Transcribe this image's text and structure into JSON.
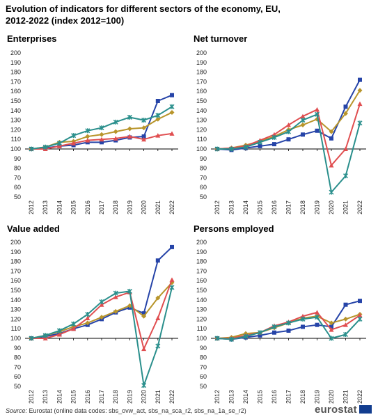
{
  "title_line1": "Evolution of indicators for different sectors of the economy, EU,",
  "title_line2": "2012-2022 (index 2012=100)",
  "source_label": "Source:",
  "source_text": " Eurostat (online data codes: sbs_ovw_act, sbs_na_sca_r2, sbs_na_1a_se_r2)",
  "logo_text": "eurostat",
  "colors": {
    "blue": "#2644a8",
    "gold": "#b8952b",
    "red": "#e04e50",
    "teal": "#2a8f8c"
  },
  "chart_data": [
    {
      "type": "line",
      "title": "Enterprises",
      "x": [
        "2012",
        "2013",
        "2014",
        "2015",
        "2016",
        "2017",
        "2018",
        "2019",
        "2020",
        "2021",
        "2022"
      ],
      "ylim": [
        50,
        200
      ],
      "yticks": [
        50,
        60,
        70,
        80,
        90,
        100,
        110,
        120,
        130,
        140,
        150,
        160,
        170,
        180,
        190,
        200
      ],
      "grid": false,
      "series": [
        {
          "color": "blue",
          "marker": "square",
          "values": [
            100,
            101,
            103,
            104,
            107,
            107,
            109,
            112,
            113,
            150,
            156
          ]
        },
        {
          "color": "gold",
          "marker": "diamond",
          "values": [
            100,
            102,
            107,
            108,
            113,
            115,
            118,
            121,
            122,
            131,
            138
          ]
        },
        {
          "color": "red",
          "marker": "triangle",
          "values": [
            100,
            100,
            103,
            106,
            109,
            110,
            111,
            113,
            110,
            114,
            116
          ]
        },
        {
          "color": "teal",
          "marker": "star",
          "values": [
            100,
            102,
            106,
            114,
            119,
            122,
            128,
            133,
            130,
            135,
            144
          ]
        }
      ]
    },
    {
      "type": "line",
      "title": "Net turnover",
      "x": [
        "2012",
        "2013",
        "2014",
        "2015",
        "2016",
        "2017",
        "2018",
        "2019",
        "2020",
        "2021",
        "2022"
      ],
      "ylim": [
        50,
        200
      ],
      "yticks": [
        50,
        60,
        70,
        80,
        90,
        100,
        110,
        120,
        130,
        140,
        150,
        160,
        170,
        180,
        190,
        200
      ],
      "grid": false,
      "series": [
        {
          "color": "blue",
          "marker": "square",
          "values": [
            100,
            99,
            101,
            103,
            105,
            110,
            115,
            119,
            111,
            144,
            172
          ]
        },
        {
          "color": "gold",
          "marker": "diamond",
          "values": [
            100,
            101,
            104,
            108,
            113,
            120,
            125,
            131,
            118,
            137,
            161
          ]
        },
        {
          "color": "red",
          "marker": "triangle",
          "values": [
            100,
            101,
            103,
            109,
            115,
            125,
            134,
            141,
            83,
            100,
            147
          ]
        },
        {
          "color": "teal",
          "marker": "star",
          "values": [
            100,
            100,
            102,
            107,
            112,
            118,
            130,
            136,
            55,
            72,
            127
          ]
        }
      ]
    },
    {
      "type": "line",
      "title": "Value added",
      "x": [
        "2012",
        "2013",
        "2014",
        "2015",
        "2016",
        "2017",
        "2018",
        "2019",
        "2020",
        "2021",
        "2022"
      ],
      "ylim": [
        50,
        200
      ],
      "yticks": [
        50,
        60,
        70,
        80,
        90,
        100,
        110,
        120,
        130,
        140,
        150,
        160,
        170,
        180,
        190,
        200
      ],
      "grid": false,
      "series": [
        {
          "color": "blue",
          "marker": "square",
          "values": [
            100,
            102,
            105,
            110,
            114,
            120,
            127,
            132,
            126,
            181,
            195
          ]
        },
        {
          "color": "gold",
          "marker": "diamond",
          "values": [
            100,
            103,
            107,
            112,
            116,
            122,
            128,
            134,
            123,
            142,
            158
          ]
        },
        {
          "color": "red",
          "marker": "triangle",
          "values": [
            100,
            100,
            104,
            110,
            121,
            135,
            143,
            148,
            89,
            121,
            161
          ]
        },
        {
          "color": "teal",
          "marker": "star",
          "values": [
            100,
            103,
            108,
            115,
            125,
            138,
            147,
            149,
            51,
            92,
            153
          ]
        }
      ]
    },
    {
      "type": "line",
      "title": "Persons employed",
      "x": [
        "2012",
        "2013",
        "2014",
        "2015",
        "2016",
        "2017",
        "2018",
        "2019",
        "2020",
        "2021",
        "2022"
      ],
      "ylim": [
        50,
        200
      ],
      "yticks": [
        50,
        60,
        70,
        80,
        90,
        100,
        110,
        120,
        130,
        140,
        150,
        160,
        170,
        180,
        190,
        200
      ],
      "grid": false,
      "series": [
        {
          "color": "blue",
          "marker": "square",
          "values": [
            100,
            99,
            101,
            103,
            106,
            108,
            112,
            114,
            112,
            135,
            139
          ]
        },
        {
          "color": "gold",
          "marker": "diamond",
          "values": [
            100,
            101,
            105,
            106,
            111,
            116,
            121,
            123,
            116,
            120,
            125
          ]
        },
        {
          "color": "red",
          "marker": "triangle",
          "values": [
            100,
            100,
            103,
            106,
            113,
            117,
            123,
            127,
            109,
            114,
            124
          ]
        },
        {
          "color": "teal",
          "marker": "star",
          "values": [
            100,
            99,
            102,
            106,
            112,
            116,
            120,
            122,
            100,
            104,
            120
          ]
        }
      ]
    }
  ]
}
